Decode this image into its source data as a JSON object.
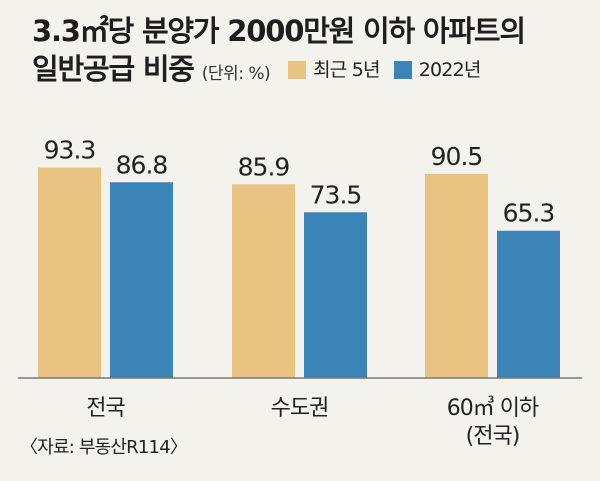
{
  "title": {
    "line1": "3.3㎡당 분양가 2000만원 이하 아파트의",
    "line2": "일반공급 비중",
    "unit": "(단위: %)"
  },
  "legend": [
    {
      "label": "최근 5년",
      "color": "#e8c382"
    },
    {
      "label": "2022년",
      "color": "#3b84b8"
    }
  ],
  "source": "〈자료: 부동산R114〉",
  "chart_data": {
    "type": "bar",
    "categories": [
      "전국",
      "수도권",
      "60㎥ 이하\n(전국)"
    ],
    "series": [
      {
        "name": "최근 5년",
        "values": [
          93.3,
          85.9,
          90.5
        ],
        "color": "#e8c382"
      },
      {
        "name": "2022년",
        "values": [
          86.8,
          73.5,
          65.3
        ],
        "color": "#3b84b8"
      }
    ],
    "value_labels": [
      [
        "93.3",
        "85.9",
        "90.5"
      ],
      [
        "86.8",
        "73.5",
        "65.3"
      ]
    ],
    "ylim": [
      0,
      100
    ],
    "grid": false,
    "legend_position": "top-right"
  }
}
